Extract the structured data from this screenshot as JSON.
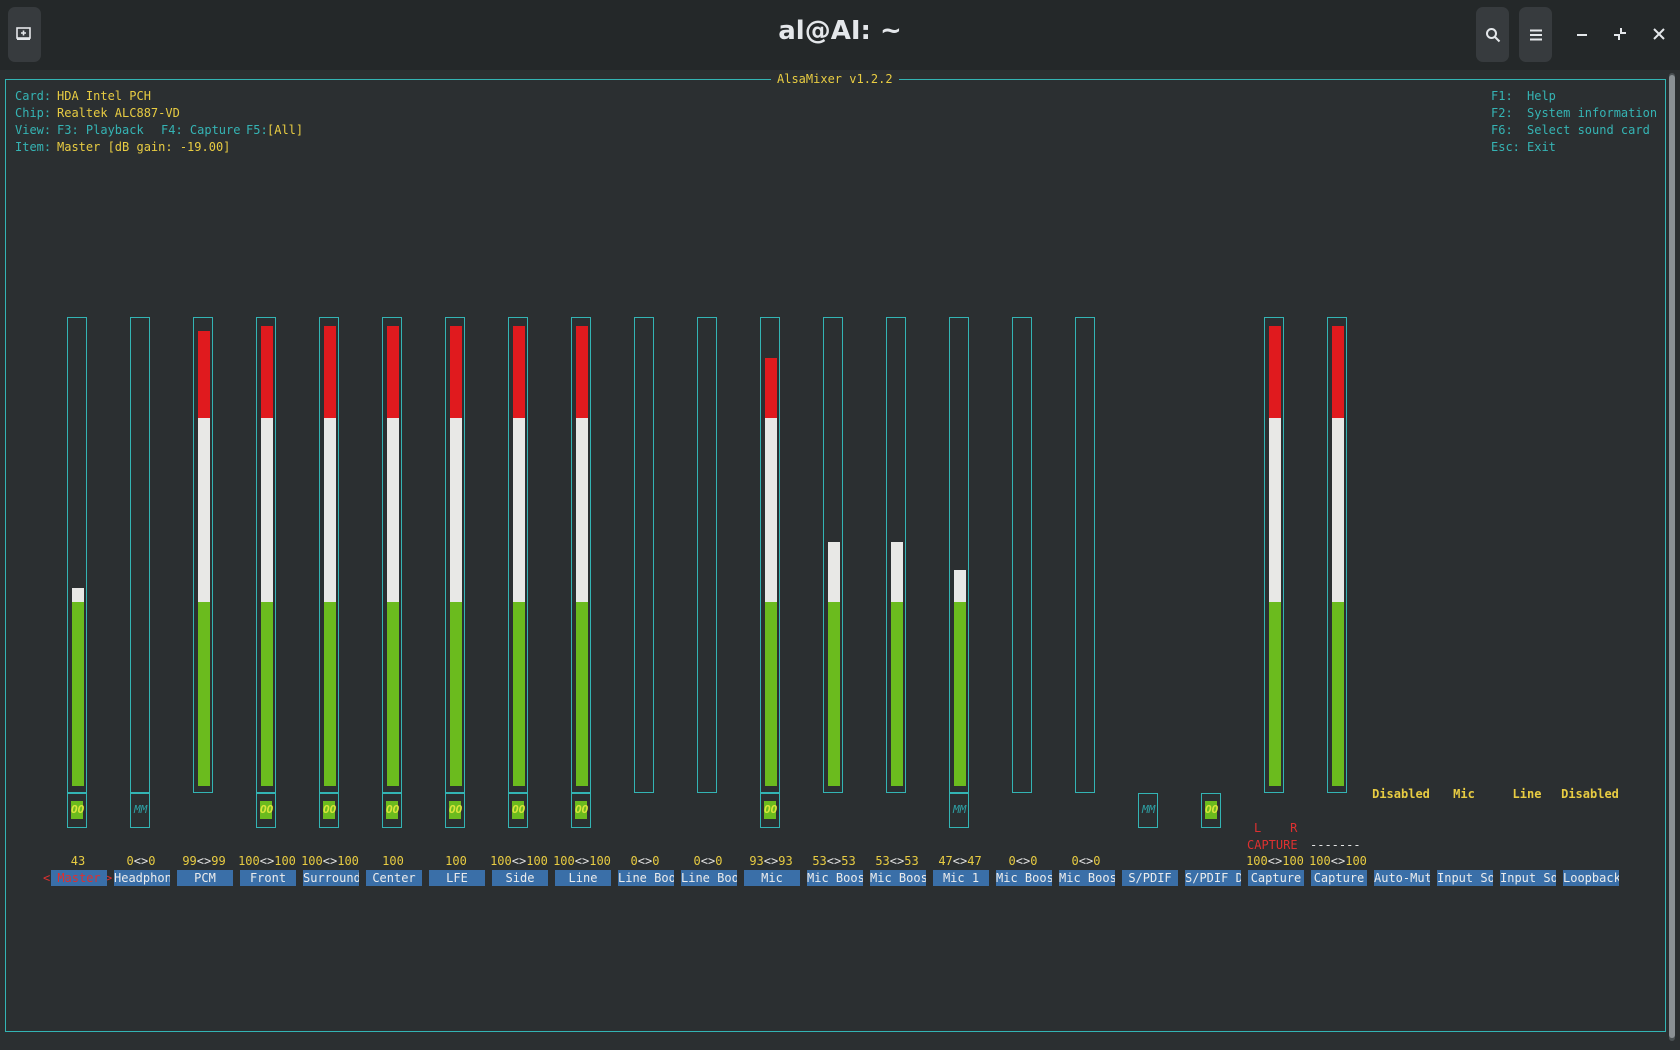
{
  "window": {
    "title": "al@AI: ~"
  },
  "mixer": {
    "title": "AlsaMixer v1.2.2",
    "info": {
      "card_label": "Card:",
      "card_value": "HDA Intel PCH",
      "chip_label": "Chip:",
      "chip_value": "Realtek ALC887-VD",
      "view_label": "View:",
      "view_f3": "F3: Playback",
      "view_f4": "F4: Capture",
      "view_f5": "F5:",
      "view_f5_value": "[All]",
      "item_label": "Item:",
      "item_value": "Master [dB gain: -19.00]"
    },
    "help": {
      "f1_key": "F1:",
      "f1_text": "Help",
      "f2_key": "F2:",
      "f2_text": "System information",
      "f6_key": "F6:",
      "f6_text": "Select sound card",
      "esc_key": "Esc:",
      "esc_text": "Exit"
    },
    "selected_marker_left": "<",
    "selected_marker_right": ">",
    "capture_lr": "L    R",
    "capture_text": "CAPTURE",
    "capture_dashes": "-------",
    "channels": [
      {
        "name": "Master",
        "value": "43",
        "level": 43,
        "switch": "OO",
        "switch_on": true,
        "selected": true
      },
      {
        "name": "Headphon",
        "value": "0<>0",
        "level": 0,
        "switch": "MM",
        "switch_on": false
      },
      {
        "name": "PCM",
        "value": "99<>99",
        "level": 99,
        "switch": "",
        "switch_on": false
      },
      {
        "name": "Front",
        "value": "100<>100",
        "level": 100,
        "switch": "OO",
        "switch_on": true
      },
      {
        "name": "Surround",
        "value": "100<>100",
        "level": 100,
        "switch": "OO",
        "switch_on": true
      },
      {
        "name": "Center",
        "value": "100",
        "level": 100,
        "switch": "OO",
        "switch_on": true
      },
      {
        "name": "LFE",
        "value": "100",
        "level": 100,
        "switch": "OO",
        "switch_on": true
      },
      {
        "name": "Side",
        "value": "100<>100",
        "level": 100,
        "switch": "OO",
        "switch_on": true
      },
      {
        "name": "Line",
        "value": "100<>100",
        "level": 100,
        "switch": "OO",
        "switch_on": true
      },
      {
        "name": "Line Boo",
        "value": "0<>0",
        "level": 0,
        "switch": "",
        "switch_on": false
      },
      {
        "name": "Line Boo",
        "value": "0<>0",
        "level": 0,
        "switch": "",
        "switch_on": false
      },
      {
        "name": "Mic",
        "value": "93<>93",
        "level": 93,
        "switch": "OO",
        "switch_on": true
      },
      {
        "name": "Mic Boos",
        "value": "53<>53",
        "level": 53,
        "switch": "",
        "switch_on": false
      },
      {
        "name": "Mic Boos",
        "value": "53<>53",
        "level": 53,
        "switch": "",
        "switch_on": false
      },
      {
        "name": "Mic 1",
        "value": "47<>47",
        "level": 47,
        "switch": "MM",
        "switch_on": false
      },
      {
        "name": "Mic Boos",
        "value": "0<>0",
        "level": 0,
        "switch": "",
        "switch_on": false
      },
      {
        "name": "Mic Boos",
        "value": "0<>0",
        "level": 0,
        "switch": "",
        "switch_on": false
      },
      {
        "name": "S/PDIF",
        "value": "",
        "level": null,
        "switch": "MM",
        "switch_on": false
      },
      {
        "name": "S/PDIF D",
        "value": "",
        "level": null,
        "switch": "OO",
        "switch_on": true
      },
      {
        "name": "Capture",
        "value": "100<>100",
        "level": 100,
        "switch": "",
        "switch_on": false
      },
      {
        "name": "Capture",
        "value": "100<>100",
        "level": 100,
        "switch": "",
        "switch_on": false
      },
      {
        "name": "Auto-Mut",
        "value": "",
        "level": null,
        "switch": "",
        "enum": "Disabled"
      },
      {
        "name": "Input So",
        "value": "",
        "level": null,
        "switch": "",
        "enum": "Mic"
      },
      {
        "name": "Input So",
        "value": "",
        "level": null,
        "switch": "",
        "enum": "Line"
      },
      {
        "name": "Loopback",
        "value": "",
        "level": null,
        "switch": "",
        "enum": "Disabled"
      }
    ],
    "colors": {
      "green": "#6bbb1e",
      "white": "#e8e8e6",
      "red": "#e01a1e",
      "frame": "#33b4b4",
      "label_bg": "#3a6fa8",
      "value": "#e8cc42"
    }
  }
}
